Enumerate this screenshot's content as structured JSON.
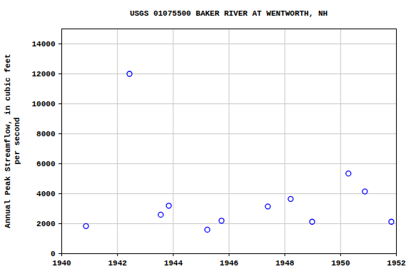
{
  "chart_data": {
    "type": "scatter",
    "title": "USGS 01075500 BAKER RIVER AT WENTWORTH, NH",
    "y_label": "Annual Peak Streamflow, in cubic feet\nper second",
    "x": [
      1940.87,
      1942.43,
      1943.55,
      1943.84,
      1945.22,
      1945.73,
      1947.39,
      1948.21,
      1948.98,
      1950.28,
      1950.87,
      1951.82
    ],
    "values": [
      1840,
      12000,
      2600,
      3200,
      1600,
      2200,
      3150,
      3650,
      2130,
      5350,
      4150,
      2130
    ],
    "color": "#0000ff",
    "marker": "open_circle",
    "xlim": [
      1940,
      1952
    ],
    "xticks": [
      1940,
      1942,
      1944,
      1946,
      1948,
      1950,
      1952
    ],
    "ylim": [
      0,
      15000
    ],
    "yticks": [
      0,
      2000,
      4000,
      6000,
      8000,
      10000,
      12000,
      14000
    ],
    "grid": true
  }
}
